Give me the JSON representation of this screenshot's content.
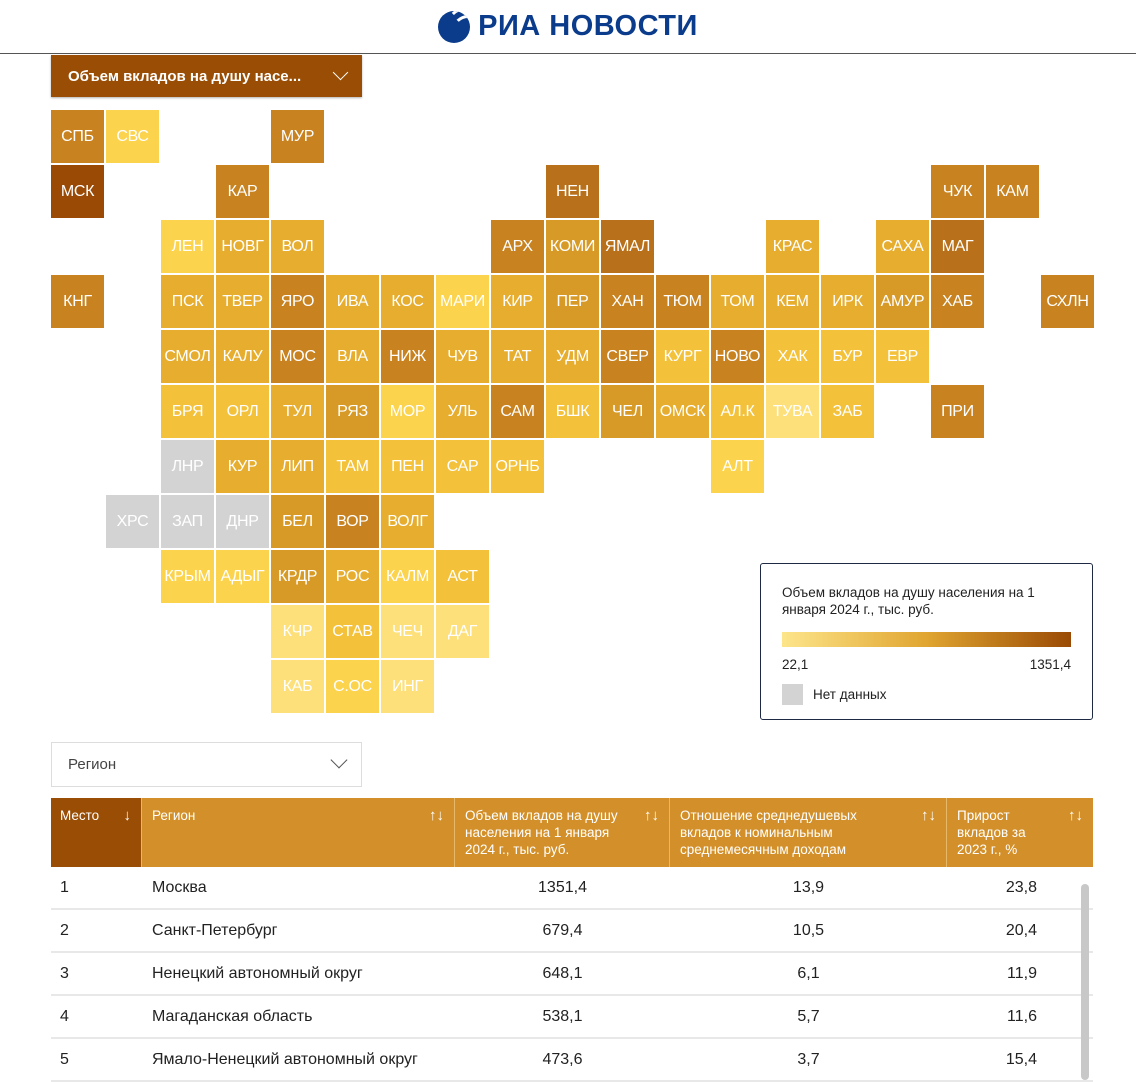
{
  "header": {
    "logo_text": "РИА НОВОСТИ"
  },
  "metric_select": {
    "value": "Объем вкладов на душу насе..."
  },
  "map": {
    "no_data_color": "#d3d3d3",
    "tiles": [
      {
        "label": "СПБ",
        "color": "#c88220"
      },
      {
        "label": "СВС",
        "color": "#fcd34d"
      },
      {
        "label": "МУР",
        "color": "#c88220"
      },
      {
        "label": "МСК",
        "color": "#9a4a05"
      },
      {
        "label": "КАР",
        "color": "#c88220"
      },
      {
        "label": "НЕН",
        "color": "#b8701a"
      },
      {
        "label": "ЧУК",
        "color": "#c88220"
      },
      {
        "label": "КАМ",
        "color": "#c88220"
      },
      {
        "label": "ЛЕН",
        "color": "#fcd34d"
      },
      {
        "label": "НОВГ",
        "color": "#e6ad2e"
      },
      {
        "label": "ВОЛ",
        "color": "#e6ad2e"
      },
      {
        "label": "АРХ",
        "color": "#c88220"
      },
      {
        "label": "КОМИ",
        "color": "#d89a26"
      },
      {
        "label": "ЯМАЛ",
        "color": "#b8701a"
      },
      {
        "label": "КРАС",
        "color": "#e6ad2e"
      },
      {
        "label": "САХА",
        "color": "#e6ad2e"
      },
      {
        "label": "МАГ",
        "color": "#b8701a"
      },
      {
        "label": "КНГ",
        "color": "#c88220"
      },
      {
        "label": "ПСК",
        "color": "#e6ad2e"
      },
      {
        "label": "ТВЕР",
        "color": "#e6ad2e"
      },
      {
        "label": "ЯРО",
        "color": "#c88220"
      },
      {
        "label": "ИВА",
        "color": "#e6ad2e"
      },
      {
        "label": "КОС",
        "color": "#e6ad2e"
      },
      {
        "label": "МАРИ",
        "color": "#fcd34d"
      },
      {
        "label": "КИР",
        "color": "#e6ad2e"
      },
      {
        "label": "ПЕР",
        "color": "#d89a26"
      },
      {
        "label": "ХАН",
        "color": "#c88220"
      },
      {
        "label": "ТЮМ",
        "color": "#c88220"
      },
      {
        "label": "ТОМ",
        "color": "#e6ad2e"
      },
      {
        "label": "КЕМ",
        "color": "#e6ad2e"
      },
      {
        "label": "ИРК",
        "color": "#e6ad2e"
      },
      {
        "label": "АМУР",
        "color": "#d89a26"
      },
      {
        "label": "ХАБ",
        "color": "#c88220"
      },
      {
        "label": "СХЛН",
        "color": "#c88220"
      },
      {
        "label": "СМОЛ",
        "color": "#e6ad2e"
      },
      {
        "label": "КАЛУ",
        "color": "#e6ad2e"
      },
      {
        "label": "МОС",
        "color": "#c88220"
      },
      {
        "label": "ВЛА",
        "color": "#e6ad2e"
      },
      {
        "label": "НИЖ",
        "color": "#c88220"
      },
      {
        "label": "ЧУВ",
        "color": "#e6ad2e"
      },
      {
        "label": "ТАТ",
        "color": "#e6ad2e"
      },
      {
        "label": "УДМ",
        "color": "#e6ad2e"
      },
      {
        "label": "СВЕР",
        "color": "#c88220"
      },
      {
        "label": "КУРГ",
        "color": "#f3c13a"
      },
      {
        "label": "НОВО",
        "color": "#c88220"
      },
      {
        "label": "ХАК",
        "color": "#f3c13a"
      },
      {
        "label": "БУР",
        "color": "#f3c13a"
      },
      {
        "label": "ЕВР",
        "color": "#f3c13a"
      },
      {
        "label": "БРЯ",
        "color": "#f3c13a"
      },
      {
        "label": "ОРЛ",
        "color": "#f3c13a"
      },
      {
        "label": "ТУЛ",
        "color": "#e6ad2e"
      },
      {
        "label": "РЯЗ",
        "color": "#d89a26"
      },
      {
        "label": "МОР",
        "color": "#fcd34d"
      },
      {
        "label": "УЛЬ",
        "color": "#e6ad2e"
      },
      {
        "label": "САМ",
        "color": "#c88220"
      },
      {
        "label": "БШК",
        "color": "#f3c13a"
      },
      {
        "label": "ЧЕЛ",
        "color": "#d89a26"
      },
      {
        "label": "ОМСК",
        "color": "#e6ad2e"
      },
      {
        "label": "АЛ.К",
        "color": "#f3c13a"
      },
      {
        "label": "ТУВА",
        "color": "#fde07a"
      },
      {
        "label": "ЗАБ",
        "color": "#f3c13a"
      },
      {
        "label": "ПРИ",
        "color": "#c88220"
      },
      {
        "label": "ЛНР",
        "color": "#d3d3d3"
      },
      {
        "label": "КУР",
        "color": "#e6ad2e"
      },
      {
        "label": "ЛИП",
        "color": "#e6ad2e"
      },
      {
        "label": "ТАМ",
        "color": "#f3c13a"
      },
      {
        "label": "ПЕН",
        "color": "#f3c13a"
      },
      {
        "label": "САР",
        "color": "#f3c13a"
      },
      {
        "label": "ОРНБ",
        "color": "#f3c13a"
      },
      {
        "label": "АЛТ",
        "color": "#fcd34d"
      },
      {
        "label": "ХРС",
        "color": "#d3d3d3"
      },
      {
        "label": "ЗАП",
        "color": "#d3d3d3"
      },
      {
        "label": "ДНР",
        "color": "#d3d3d3"
      },
      {
        "label": "БЕЛ",
        "color": "#d89a26"
      },
      {
        "label": "ВОР",
        "color": "#c88220"
      },
      {
        "label": "ВОЛГ",
        "color": "#e6ad2e"
      },
      {
        "label": "КРЫМ",
        "color": "#fcd34d"
      },
      {
        "label": "АДЫГ",
        "color": "#fcd34d"
      },
      {
        "label": "КРДР",
        "color": "#d89a26"
      },
      {
        "label": "РОС",
        "color": "#e6ad2e"
      },
      {
        "label": "КАЛМ",
        "color": "#fcd34d"
      },
      {
        "label": "АСТ",
        "color": "#f3c13a"
      },
      {
        "label": "КЧР",
        "color": "#fde07a"
      },
      {
        "label": "СТАВ",
        "color": "#f3c13a"
      },
      {
        "label": "ЧЕЧ",
        "color": "#fde07a"
      },
      {
        "label": "ДАГ",
        "color": "#fde07a"
      },
      {
        "label": "КАБ",
        "color": "#fde07a"
      },
      {
        "label": "С.ОС",
        "color": "#fcd34d"
      },
      {
        "label": "ИНГ",
        "color": "#fde07a"
      }
    ]
  },
  "legend": {
    "title": "Объем вкладов на душу населения на 1 января 2024 г., тыс. руб.",
    "min": "22,1",
    "max": "1351,4",
    "min_color": "#fde58a",
    "max_color": "#9a4a05",
    "no_data": "Нет данных"
  },
  "region_select": {
    "placeholder": "Регион"
  },
  "table": {
    "headers": [
      {
        "label": "Место",
        "sort": "↓"
      },
      {
        "label": "Регион",
        "sort": "↑↓"
      },
      {
        "label": "Объем вкладов на душу населения на 1 января 2024 г., тыс. руб.",
        "sort": "↑↓"
      },
      {
        "label": "Отношение среднедушевых вкладов к номинальным среднемесячным доходам",
        "sort": "↑↓"
      },
      {
        "label": "Прирост вкладов за 2023 г., %",
        "sort": "↑↓"
      }
    ],
    "rows": [
      [
        "1",
        "Москва",
        "1351,4",
        "13,9",
        "23,8"
      ],
      [
        "2",
        "Санкт-Петербург",
        "679,4",
        "10,5",
        "20,4"
      ],
      [
        "3",
        "Ненецкий автономный округ",
        "648,1",
        "6,1",
        "11,9"
      ],
      [
        "4",
        "Магаданская область",
        "538,1",
        "5,7",
        "11,6"
      ],
      [
        "5",
        "Ямало-Ненецкий автономный округ",
        "473,6",
        "3,7",
        "15,4"
      ]
    ]
  }
}
